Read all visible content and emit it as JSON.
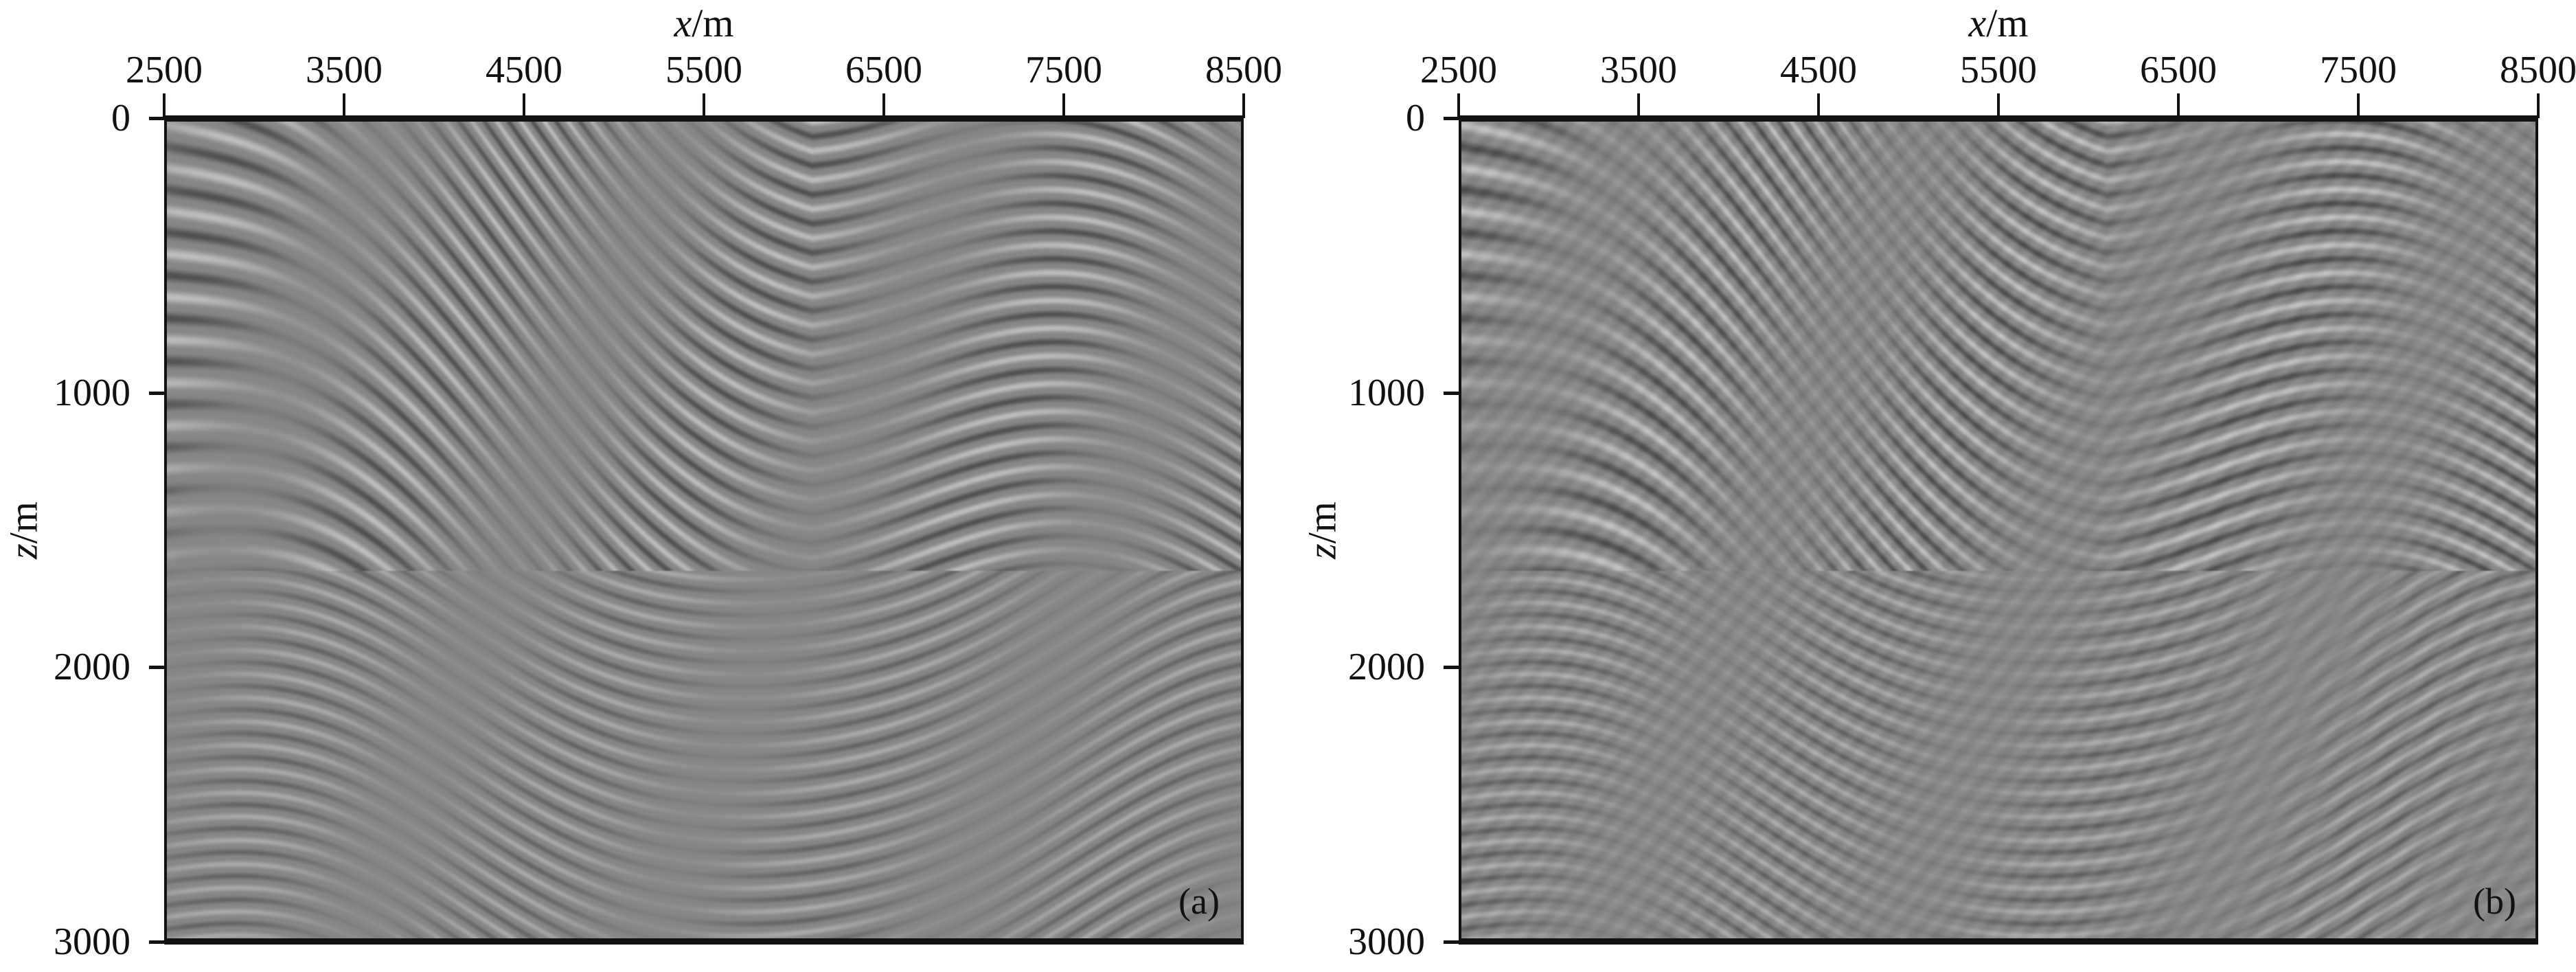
{
  "chart_data": [
    {
      "type": "heatmap",
      "panel_label": "(a)",
      "xlabel_var": "x",
      "xlabel_unit": "/m",
      "ylabel_var": "z",
      "ylabel_unit": "/m",
      "xticks": [
        "2500",
        "3500",
        "4500",
        "5500",
        "6500",
        "7500",
        "8500"
      ],
      "yticks": [
        "0",
        "1000",
        "2000",
        "3000"
      ],
      "xlim": [
        2500,
        8500
      ],
      "ylim": [
        0,
        3000
      ],
      "x_axis_position": "top",
      "y_reversed": true,
      "colormap": "gray"
    },
    {
      "type": "heatmap",
      "panel_label": "(b)",
      "xlabel_var": "x",
      "xlabel_unit": "/m",
      "ylabel_var": "z",
      "ylabel_unit": "/m",
      "xticks": [
        "2500",
        "3500",
        "4500",
        "5500",
        "6500",
        "7500",
        "8500"
      ],
      "yticks": [
        "0",
        "1000",
        "2000",
        "3000"
      ],
      "xlim": [
        2500,
        8500
      ],
      "ylim": [
        0,
        3000
      ],
      "x_axis_position": "top",
      "y_reversed": true,
      "colormap": "gray"
    }
  ]
}
